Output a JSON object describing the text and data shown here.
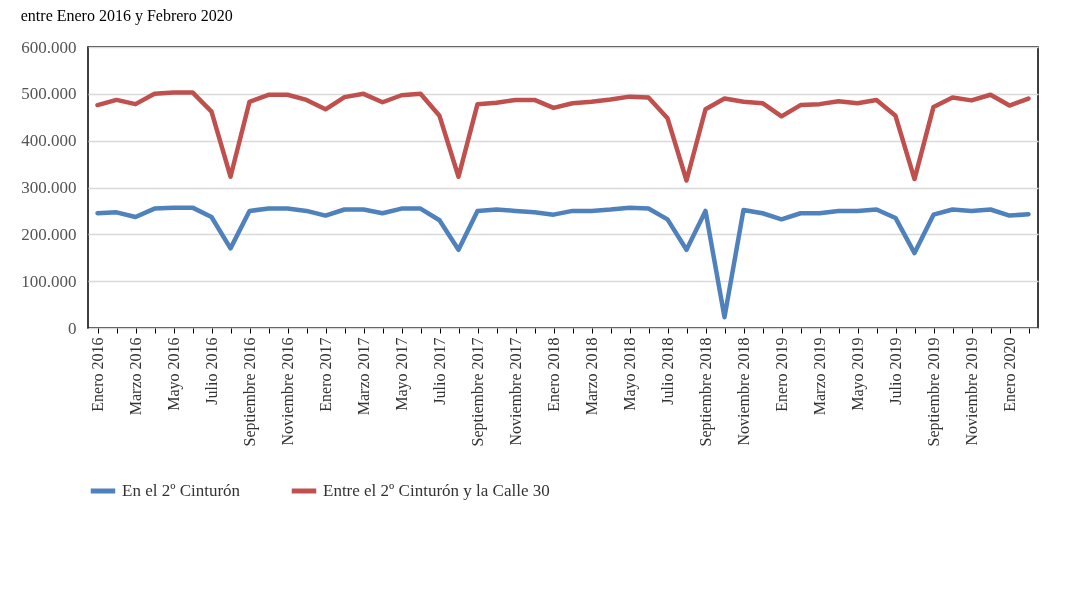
{
  "chart_data": {
    "type": "line",
    "title": "entre Enero 2016 y Febrero 2020",
    "categories": [
      "Enero 2016",
      null,
      "Marzo 2016",
      null,
      "Mayo 2016",
      null,
      "Julio 2016",
      null,
      "Septiembre 2016",
      null,
      "Noviembre 2016",
      null,
      "Enero 2017",
      null,
      "Marzo 2017",
      null,
      "Mayo 2017",
      null,
      "Julio 2017",
      null,
      "Septiembre 2017",
      null,
      "Noviembre 2017",
      null,
      "Enero 2018",
      null,
      "Marzo 2018",
      null,
      "Mayo 2018",
      null,
      "Julio 2018",
      null,
      "Septiembre 2018",
      null,
      "Noviembre 2018",
      null,
      "Enero 2019",
      null,
      "Marzo 2019",
      null,
      "Mayo 2019",
      null,
      "Julio 2019",
      null,
      "Septiembre 2019",
      null,
      "Noviembre 2019",
      null,
      "Enero 2020",
      null
    ],
    "series": [
      {
        "name": "En el 2º Cinturón",
        "color": "#4f81bd",
        "values": [
          245000,
          247000,
          237000,
          255000,
          257000,
          257000,
          237000,
          170000,
          250000,
          255000,
          255000,
          250000,
          240000,
          253000,
          253000,
          245000,
          255000,
          255000,
          230000,
          167000,
          250000,
          253000,
          250000,
          247000,
          242000,
          250000,
          250000,
          253000,
          257000,
          255000,
          232000,
          167000,
          250000,
          23000,
          252000,
          245000,
          232000,
          245000,
          245000,
          250000,
          250000,
          253000,
          235000,
          160000,
          242000,
          253000,
          250000,
          253000,
          240000,
          243000
        ]
      },
      {
        "name": "Entre el 2º Cinturón y la Calle 30",
        "color": "#c0504d",
        "values": [
          476000,
          487000,
          478000,
          500000,
          503000,
          503000,
          462000,
          323000,
          483000,
          498000,
          498000,
          487000,
          467000,
          493000,
          500000,
          482000,
          497000,
          500000,
          453000,
          323000,
          478000,
          481000,
          487000,
          487000,
          470000,
          480000,
          483000,
          488000,
          494000,
          492000,
          448000,
          315000,
          467000,
          490000,
          483000,
          480000,
          452000,
          476000,
          478000,
          484000,
          480000,
          487000,
          453000,
          318000,
          472000,
          492000,
          486000,
          498000,
          475000,
          490000
        ]
      }
    ],
    "ylim": [
      0,
      600000
    ],
    "yticks": [
      {
        "value": 0,
        "label": "0"
      },
      {
        "value": 100000,
        "label": "100.000"
      },
      {
        "value": 200000,
        "label": "200.000"
      },
      {
        "value": 300000,
        "label": "300.000"
      },
      {
        "value": 400000,
        "label": "400.000"
      },
      {
        "value": 500000,
        "label": "500.000"
      },
      {
        "value": 600000,
        "label": "600.000"
      }
    ],
    "grid": "y",
    "legend": "bottom",
    "marker": "none",
    "line_style": "solid"
  }
}
